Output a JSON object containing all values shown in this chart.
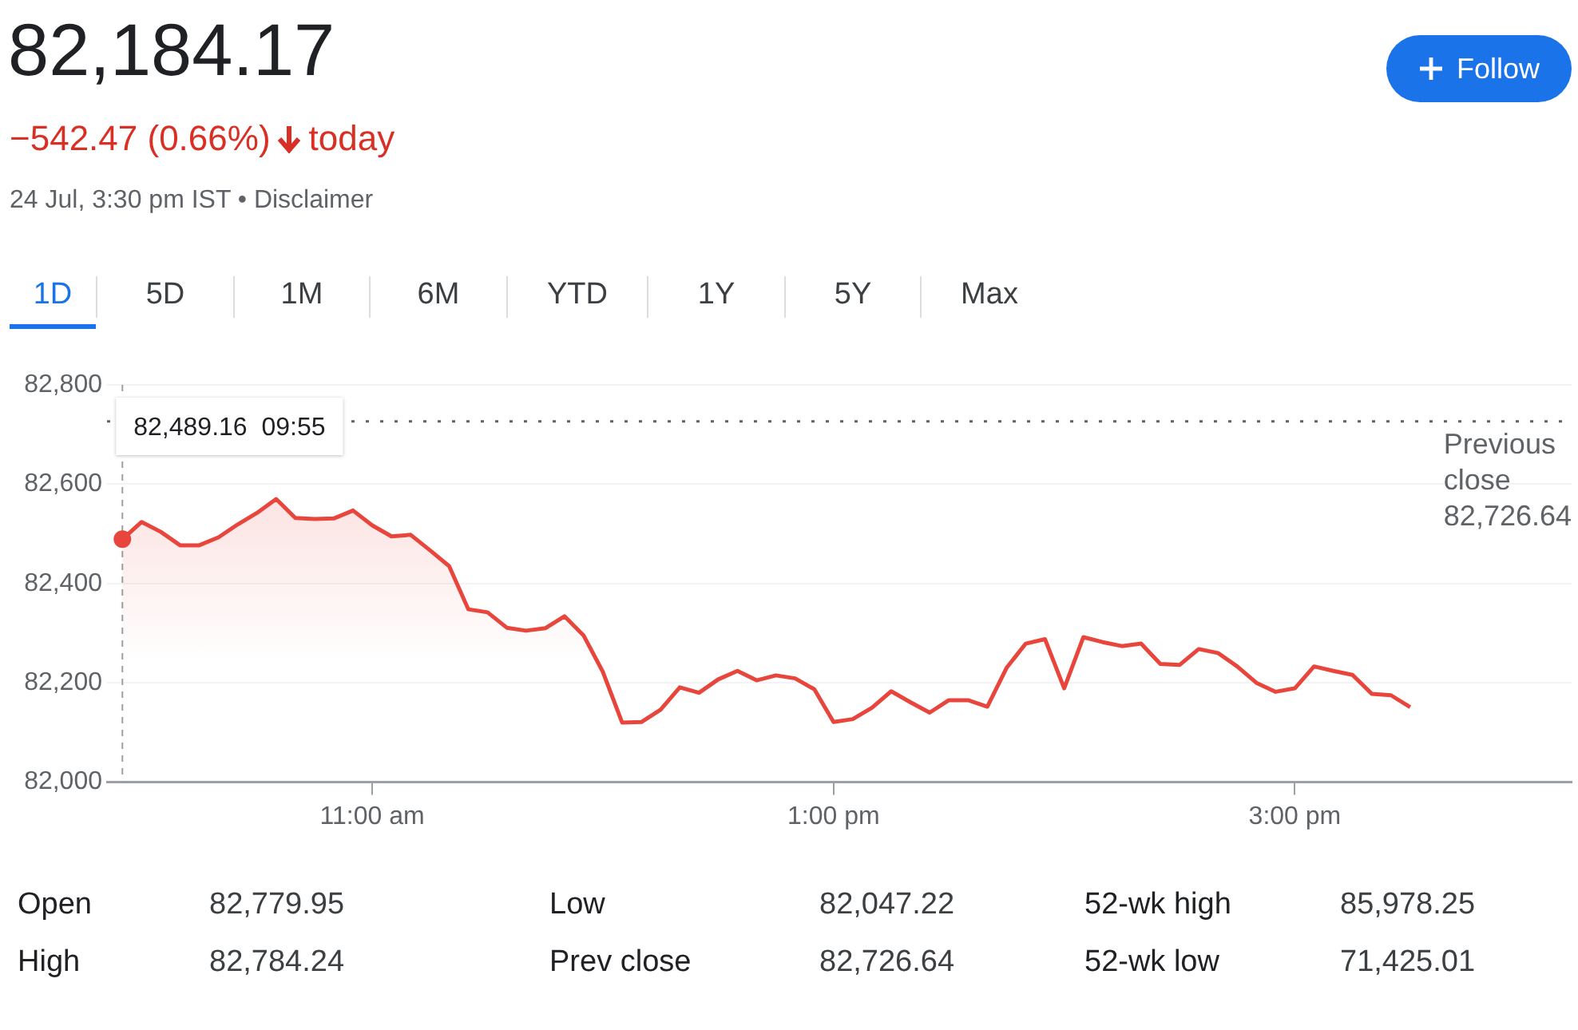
{
  "chart_data": {
    "type": "area",
    "title": "82,184.17",
    "subtitle": "−542.47 (0.66%) today",
    "annotations": [
      "24 Jul, 3:30 pm IST • Disclaimer",
      "Follow",
      "1D",
      "5D",
      "1M",
      "6M",
      "YTD",
      "1Y",
      "5Y",
      "Max",
      "Open",
      "82,779.95",
      "Low",
      "82,047.22",
      "52-wk high",
      "85,978.25",
      "High",
      "82,784.24",
      "Prev close",
      "82,726.64",
      "52-wk low",
      "71,425.01",
      "82,489.16  09:55"
    ],
    "x": [
      9.9167,
      10,
      10.0833,
      10.1667,
      10.25,
      10.3333,
      10.4167,
      10.5,
      10.5833,
      10.6667,
      10.75,
      10.8333,
      10.9167,
      11,
      11.0833,
      11.1667,
      11.25,
      11.3333,
      11.4167,
      11.5,
      11.5833,
      11.6667,
      11.75,
      11.8333,
      11.9167,
      12,
      12.0833,
      12.1667,
      12.25,
      12.3333,
      12.4167,
      12.5,
      12.5833,
      12.6667,
      12.75,
      12.8333,
      12.9167,
      13,
      13.0833,
      13.1667,
      13.25,
      13.3333,
      13.4167,
      13.5,
      13.5833,
      13.6667,
      13.75,
      13.8333,
      13.9167,
      14,
      14.0833,
      14.1667,
      14.25,
      14.3333,
      14.4167,
      14.5,
      14.5833,
      14.6667,
      14.75,
      14.8333,
      14.9167,
      15,
      15.0833,
      15.1667,
      15.25,
      15.3333,
      15.4167,
      15.5
    ],
    "series": [
      {
        "color": "#e8453c",
        "values": [
          82489.16,
          82524,
          82504,
          82477,
          82477,
          82493,
          82519,
          82542,
          82570,
          82532,
          82530,
          82531,
          82547,
          82517,
          82495,
          82498,
          82467,
          82435,
          82348,
          82342,
          82311,
          82305,
          82310,
          82334,
          82295,
          82222,
          82120,
          82121,
          82146,
          82191,
          82180,
          82207,
          82224,
          82205,
          82215,
          82209,
          82187,
          82121,
          82127,
          82150,
          82183,
          82161,
          82140,
          82165,
          82165,
          82152,
          82230,
          82279,
          82288,
          82189,
          82292,
          82282,
          82274,
          82279,
          82238,
          82236,
          82268,
          82260,
          82233,
          82200,
          82182,
          82189,
          82233,
          82224,
          82216,
          82178,
          82175,
          82151
        ]
      }
    ],
    "xlim": [
      9.85,
      16.2
    ],
    "xticks": [
      {
        "value": 11,
        "label": "11:00 am"
      },
      {
        "value": 13,
        "label": "1:00 pm"
      },
      {
        "value": 15,
        "label": "3:00 pm"
      }
    ],
    "ylim": [
      82000,
      82800
    ],
    "yticks": [
      {
        "value": 82000,
        "label": "82,000"
      },
      {
        "value": 82200,
        "label": "82,200"
      },
      {
        "value": 82400,
        "label": "82,400"
      },
      {
        "value": 82600,
        "label": "82,600"
      },
      {
        "value": 82800,
        "label": "82,800"
      }
    ],
    "ref_lines": [
      {
        "axis": "y",
        "value": 82726.64,
        "label": "Previous close 82,726.64",
        "color": "#5f6368",
        "line_style": "dotted"
      },
      {
        "axis": "x",
        "value": 9.9167,
        "color": "#9aa0a6",
        "line_style": "dashed"
      }
    ],
    "grid": "y",
    "legend": false,
    "marker": "none",
    "line_style": "solid"
  }
}
